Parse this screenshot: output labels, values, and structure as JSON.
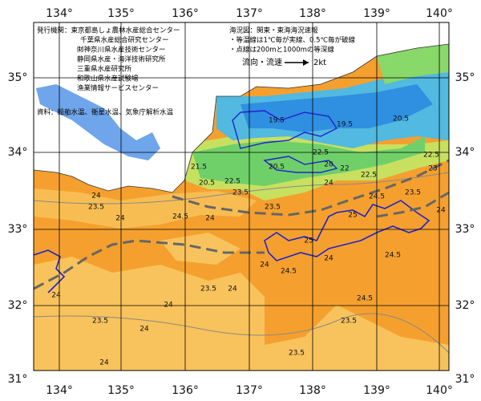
{
  "map": {
    "longitude_labels": [
      "134°",
      "135°",
      "136°",
      "137°",
      "138°",
      "139°",
      "140°"
    ],
    "latitude_labels": [
      "35°",
      "34°",
      "33°",
      "32°",
      "31°"
    ],
    "issuers": {
      "heading": "発行機関：東京都島しょ農林水産総合センター",
      "lines": [
        "千葉県水産総合研究センター",
        "㈶神奈川県水産技術センター",
        "静岡県水産・海洋技術研究所",
        "三重県水産研究所",
        "和歌山県水産試験場",
        "漁業情報サービスセンター"
      ],
      "source": "資料：船舶水温、衛星水温、気象庁解析水温"
    },
    "legend": {
      "title": "海況図：関東・東海海況速報",
      "notes": [
        "・等温線は1℃毎が実線、0.5℃毎が破線",
        "・点線は200mと1000mの等深線"
      ],
      "current_label": "流向・流速",
      "current_speed": "2kt"
    },
    "contour_labels": [
      "19.5",
      "20.5",
      "21.5",
      "20.5",
      "22.5",
      "23.5",
      "22.5",
      "20",
      "22",
      "19.5",
      "20.5",
      "22.5",
      "23",
      "22.5",
      "24.5",
      "23.5",
      "24",
      "25",
      "25",
      "24.5",
      "24.5",
      "24.5",
      "24",
      "24",
      "24",
      "23.5",
      "23.5",
      "24",
      "24",
      "24",
      "23.5",
      "23.5",
      "24",
      "24",
      "23.5",
      "24",
      "24.5",
      "24",
      "23.5",
      "24"
    ]
  }
}
